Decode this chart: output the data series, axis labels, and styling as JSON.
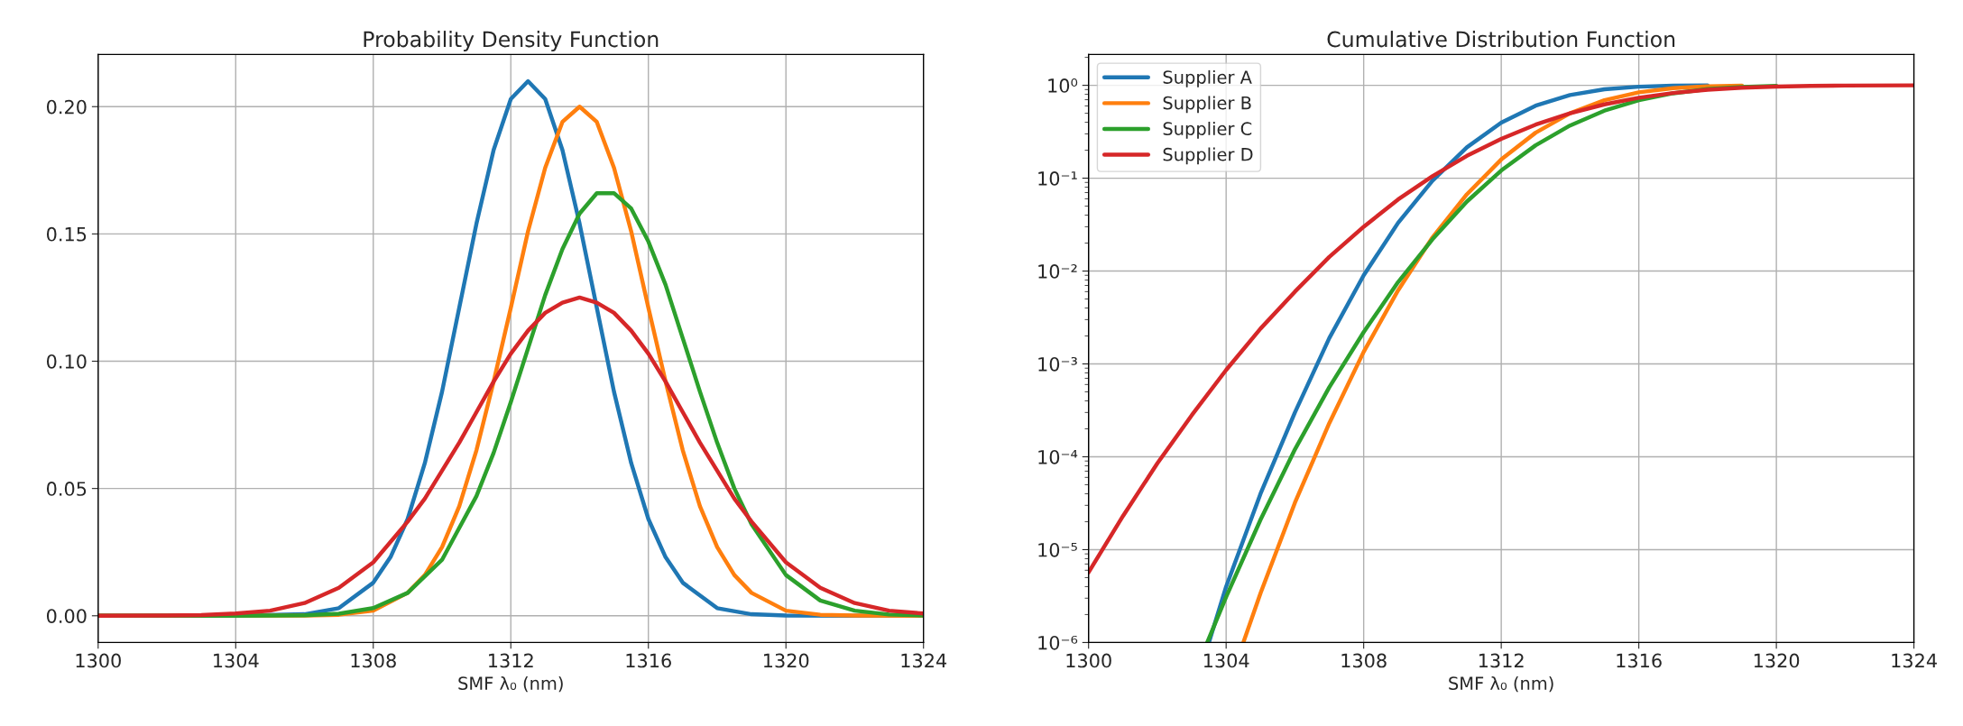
{
  "chart_data": [
    {
      "type": "line",
      "title": "Probability Density Function",
      "xlabel": "SMF λ₀ (nm)",
      "xlim": [
        1300,
        1324
      ],
      "xticks": [
        1300,
        1304,
        1308,
        1312,
        1316,
        1320,
        1324
      ],
      "ylim": [
        -0.0105,
        0.2205
      ],
      "yticks": [
        {
          "value": 0,
          "label": "0.00"
        },
        {
          "value": 0.05,
          "label": "0.05"
        },
        {
          "value": 0.1,
          "label": "0.10"
        },
        {
          "value": 0.15,
          "label": "0.15"
        },
        {
          "value": 0.2,
          "label": "0.20"
        }
      ],
      "grid": true,
      "legend": false,
      "series": [
        {
          "color": "#1f77b4",
          "x": [
            1300,
            1304,
            1306,
            1307,
            1308,
            1308.5,
            1309,
            1309.5,
            1310,
            1310.5,
            1311,
            1311.5,
            1312,
            1312.5,
            1313,
            1313.5,
            1314,
            1314.5,
            1315,
            1315.5,
            1316,
            1316.5,
            1317,
            1318,
            1319,
            1320,
            1322,
            1324
          ],
          "values": [
            0,
            0,
            0.0006,
            0.003,
            0.013,
            0.023,
            0.038,
            0.06,
            0.088,
            0.121,
            0.154,
            0.183,
            0.203,
            0.21,
            0.203,
            0.183,
            0.154,
            0.121,
            0.088,
            0.06,
            0.038,
            0.023,
            0.013,
            0.003,
            0.0006,
            0.0001,
            0,
            0
          ]
        },
        {
          "color": "#ff7f0e",
          "x": [
            1300,
            1304,
            1306,
            1307,
            1308,
            1309,
            1309.5,
            1310,
            1310.5,
            1311,
            1311.5,
            1312,
            1312.5,
            1313,
            1313.5,
            1314,
            1314.5,
            1315,
            1315.5,
            1316,
            1316.5,
            1317,
            1317.5,
            1318,
            1318.5,
            1319,
            1320,
            1321,
            1322,
            1324
          ],
          "values": [
            0,
            0,
            0.0001,
            0.0004,
            0.002,
            0.009,
            0.016,
            0.027,
            0.043,
            0.065,
            0.092,
            0.121,
            0.151,
            0.176,
            0.194,
            0.2,
            0.194,
            0.176,
            0.151,
            0.121,
            0.092,
            0.065,
            0.043,
            0.027,
            0.016,
            0.009,
            0.002,
            0.0004,
            0.0001,
            0
          ]
        },
        {
          "color": "#2ca02c",
          "x": [
            1300,
            1304,
            1306,
            1307,
            1308,
            1309,
            1310,
            1311,
            1311.5,
            1312,
            1312.5,
            1313,
            1313.5,
            1314,
            1314.5,
            1315,
            1315.5,
            1316,
            1316.5,
            1317,
            1317.5,
            1318,
            1318.5,
            1319,
            1320,
            1321,
            1322,
            1323,
            1324
          ],
          "values": [
            0,
            0,
            0.0002,
            0.0008,
            0.003,
            0.009,
            0.022,
            0.047,
            0.064,
            0.084,
            0.105,
            0.126,
            0.144,
            0.158,
            0.166,
            0.166,
            0.16,
            0.147,
            0.13,
            0.109,
            0.088,
            0.068,
            0.05,
            0.036,
            0.016,
            0.006,
            0.002,
            0.0005,
            0.0001
          ]
        },
        {
          "color": "#d62728",
          "x": [
            1300,
            1302,
            1303,
            1304,
            1305,
            1306,
            1307,
            1308,
            1309,
            1309.5,
            1310,
            1310.5,
            1311,
            1311.5,
            1312,
            1312.5,
            1313,
            1313.5,
            1314,
            1314.5,
            1315,
            1315.5,
            1316,
            1316.5,
            1317,
            1317.5,
            1318,
            1318.5,
            1319,
            1320,
            1321,
            1322,
            1323,
            1324
          ],
          "values": [
            0,
            0.0001,
            0.0003,
            0.0009,
            0.002,
            0.005,
            0.011,
            0.021,
            0.037,
            0.046,
            0.057,
            0.068,
            0.08,
            0.092,
            0.103,
            0.112,
            0.119,
            0.123,
            0.125,
            0.123,
            0.119,
            0.112,
            0.103,
            0.092,
            0.08,
            0.068,
            0.057,
            0.046,
            0.037,
            0.021,
            0.011,
            0.005,
            0.002,
            0.0009
          ]
        }
      ]
    },
    {
      "type": "line",
      "title": "Cumulative Distribution Function",
      "xlabel": "SMF λ₀ (nm)",
      "xlim": [
        1300,
        1324
      ],
      "xticks": [
        1300,
        1304,
        1308,
        1312,
        1316,
        1320,
        1324
      ],
      "log": "y",
      "ylim": [
        1e-06,
        2.15
      ],
      "yticks": [
        {
          "value": 1e-06,
          "label": "10⁻⁶"
        },
        {
          "value": 1e-05,
          "label": "10⁻⁵"
        },
        {
          "value": 0.0001,
          "label": "10⁻⁴"
        },
        {
          "value": 0.001,
          "label": "10⁻³"
        },
        {
          "value": 0.01,
          "label": "10⁻²"
        },
        {
          "value": 0.1,
          "label": "10⁻¹"
        },
        {
          "value": 1,
          "label": "10⁰"
        }
      ],
      "grid": true,
      "legend": "top left",
      "series": [
        {
          "name": "Supplier A",
          "color": "#1f77b4",
          "x": [
            1303.5,
            1304,
            1305,
            1306,
            1307,
            1308,
            1309,
            1310,
            1311,
            1312,
            1313,
            1314,
            1315,
            1316,
            1317,
            1318
          ],
          "values": [
            1e-06,
            4e-06,
            4e-05,
            0.0003,
            0.0019,
            0.009,
            0.033,
            0.094,
            0.215,
            0.396,
            0.604,
            0.785,
            0.906,
            0.967,
            0.991,
            0.998
          ]
        },
        {
          "name": "Supplier B",
          "color": "#ff7f0e",
          "x": [
            1304.5,
            1305,
            1306,
            1307,
            1308,
            1309,
            1310,
            1311,
            1312,
            1313,
            1314,
            1315,
            1316,
            1317,
            1318,
            1319
          ],
          "values": [
            1e-06,
            3.4e-06,
            3.2e-05,
            0.00023,
            0.00135,
            0.0062,
            0.023,
            0.067,
            0.159,
            0.309,
            0.5,
            0.691,
            0.841,
            0.933,
            0.977,
            0.994
          ]
        },
        {
          "name": "Supplier C",
          "color": "#2ca02c",
          "x": [
            1303.45,
            1304,
            1305,
            1306,
            1307,
            1308,
            1309,
            1310,
            1311,
            1312,
            1313,
            1314,
            1315,
            1316,
            1317,
            1318,
            1319,
            1320
          ],
          "values": [
            1e-06,
            3.1e-06,
            2.1e-05,
            0.00012,
            0.00056,
            0.0022,
            0.0076,
            0.022,
            0.056,
            0.121,
            0.226,
            0.369,
            0.533,
            0.692,
            0.821,
            0.91,
            0.961,
            0.985
          ]
        },
        {
          "name": "Supplier D",
          "color": "#d62728",
          "x": [
            1300,
            1301,
            1302,
            1303,
            1304,
            1305,
            1306,
            1307,
            1308,
            1309,
            1310,
            1311,
            1312,
            1313,
            1314,
            1315,
            1316,
            1317,
            1318,
            1319,
            1320,
            1321,
            1322,
            1324
          ],
          "values": [
            5.7e-06,
            2.3e-05,
            8.5e-05,
            0.00028,
            0.00086,
            0.0024,
            0.006,
            0.0142,
            0.03,
            0.059,
            0.105,
            0.174,
            0.265,
            0.377,
            0.5,
            0.623,
            0.735,
            0.826,
            0.895,
            0.941,
            0.97,
            0.986,
            0.994,
            0.999
          ]
        }
      ]
    }
  ]
}
